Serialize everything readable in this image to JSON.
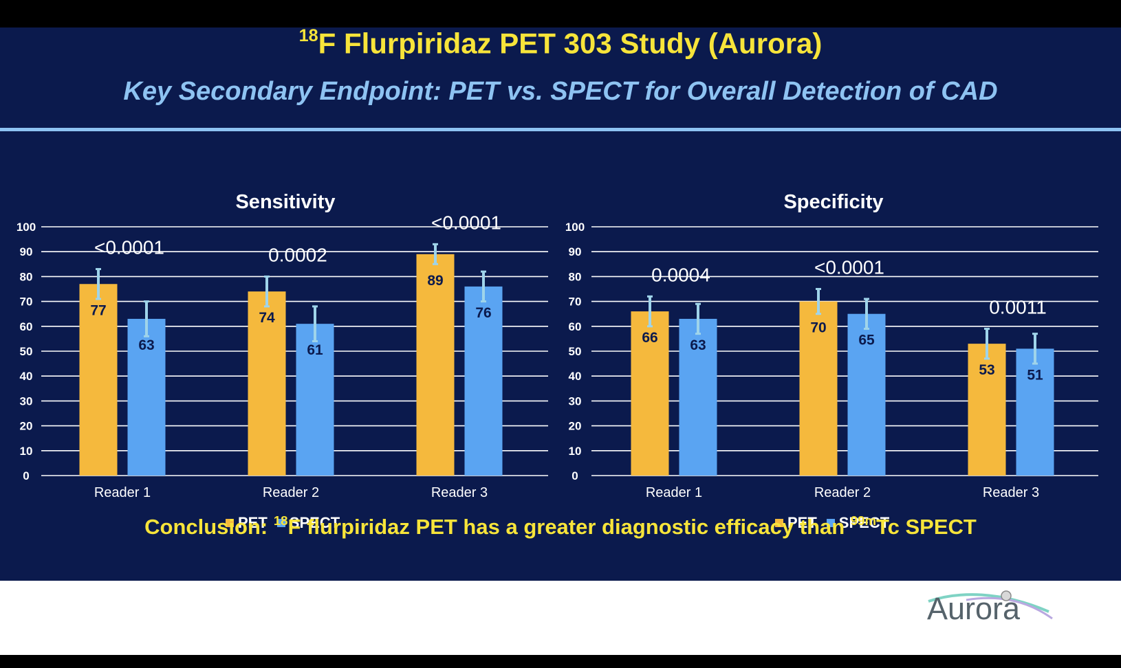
{
  "slide": {
    "title_sup": "18",
    "title_main": "F Flurpiridaz PET 303 Study (Aurora)",
    "subtitle": "Key Secondary Endpoint: PET vs. SPECT for Overall Detection of CAD",
    "conclusion_prefix": "Conclusion: ",
    "conclusion_sup1": "18",
    "conclusion_mid": "F flurpiridaz PET has a greater diagnostic efficacy than ",
    "conclusion_sup2": "99m",
    "conclusion_end": "Tc SPECT",
    "logo_text": "Aurora"
  },
  "colors": {
    "background": "#0b1a4d",
    "title": "#f7e43a",
    "subtitle": "#8ec3f2",
    "pet": "#f5b93d",
    "spect": "#5aa4f2",
    "error_bar": "#9fd4ea"
  },
  "chart_data": [
    {
      "type": "bar",
      "title": "Sensitivity",
      "categories": [
        "Reader 1",
        "Reader 2",
        "Reader 3"
      ],
      "series": [
        {
          "name": "PET",
          "values": [
            77,
            74,
            89
          ],
          "error_plus": [
            6,
            6,
            4
          ],
          "error_minus": [
            6,
            6,
            4
          ]
        },
        {
          "name": "SPECT",
          "values": [
            63,
            61,
            76
          ],
          "error_plus": [
            7,
            7,
            6
          ],
          "error_minus": [
            7,
            7,
            6
          ]
        }
      ],
      "p_values": [
        "<0.0001",
        "0.0002",
        "<0.0001"
      ],
      "ylim": [
        0,
        100
      ],
      "yticks": [
        0,
        10,
        20,
        30,
        40,
        50,
        60,
        70,
        80,
        90,
        100
      ],
      "grid": true,
      "legend": "bottom-center"
    },
    {
      "type": "bar",
      "title": "Specificity",
      "categories": [
        "Reader 1",
        "Reader 2",
        "Reader 3"
      ],
      "series": [
        {
          "name": "PET",
          "values": [
            66,
            70,
            53
          ],
          "error_plus": [
            6,
            5,
            6
          ],
          "error_minus": [
            6,
            5,
            6
          ]
        },
        {
          "name": "SPECT",
          "values": [
            63,
            65,
            51
          ],
          "error_plus": [
            6,
            6,
            6
          ],
          "error_minus": [
            6,
            6,
            6
          ]
        }
      ],
      "p_values": [
        "0.0004",
        "<0.0001",
        "0.0011"
      ],
      "ylim": [
        0,
        100
      ],
      "yticks": [
        0,
        10,
        20,
        30,
        40,
        50,
        60,
        70,
        80,
        90,
        100
      ],
      "grid": true,
      "legend": "bottom-center"
    }
  ]
}
